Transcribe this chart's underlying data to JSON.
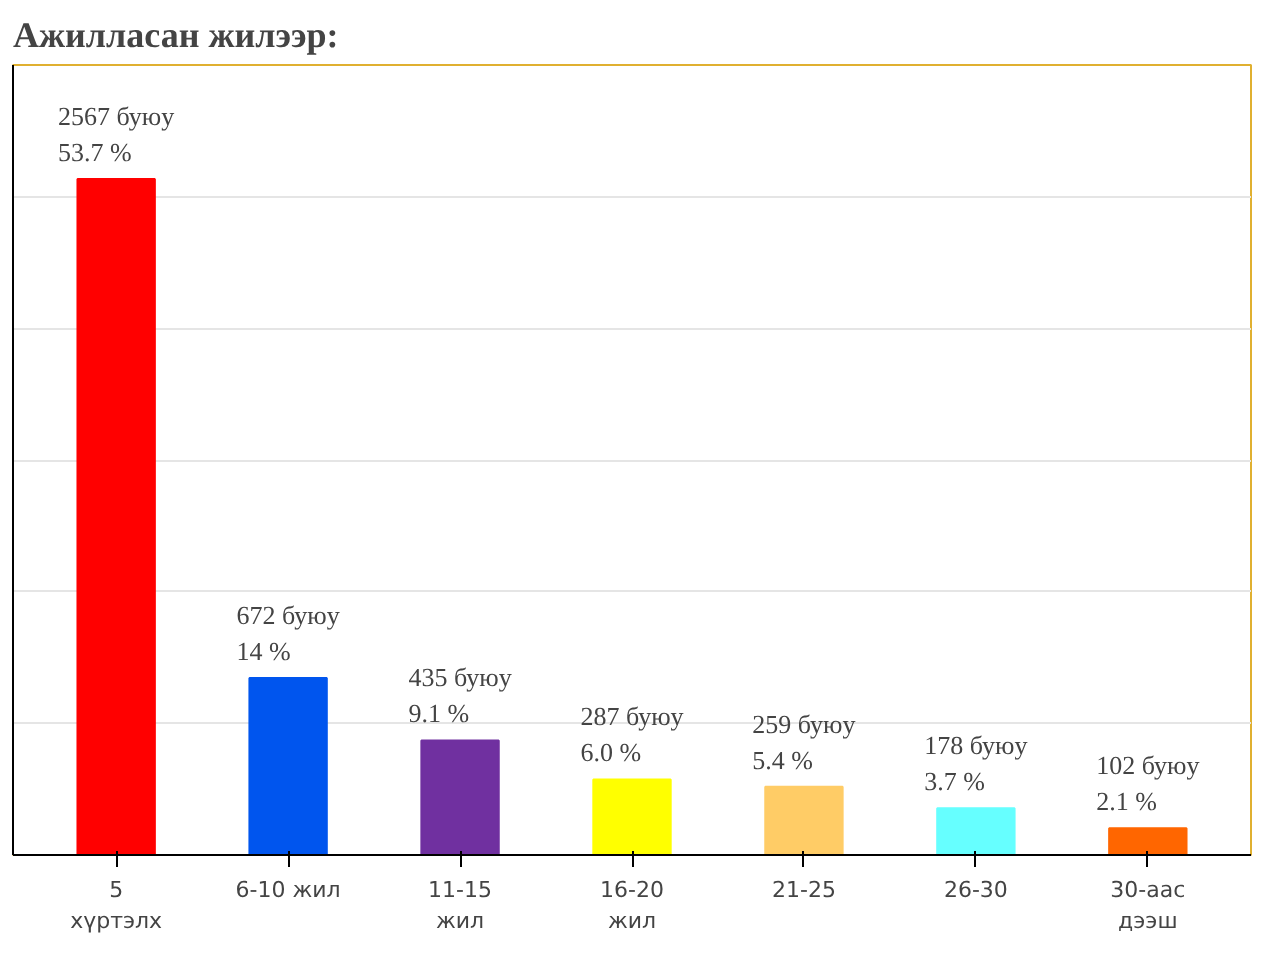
{
  "chart_data": {
    "type": "bar",
    "title": "Ажилласан жилээр:",
    "categories": [
      "5\nхүртэлх",
      "6-10 жил",
      "11-15\nжил",
      "16-20\nжил",
      "21-25",
      "26-30",
      "30-аас\nдээш"
    ],
    "values": [
      2567,
      672,
      435,
      287,
      259,
      178,
      102
    ],
    "colors": [
      "#ff0000",
      "#0055ee",
      "#7030a0",
      "#ffff00",
      "#ffcc66",
      "#66ffff",
      "#ff6600"
    ],
    "value_labels": [
      "2567 буюу\n53.7 %",
      "672 буюу\n14 %",
      "435 буюу\n9.1 %",
      "287 буюу\n6.0 %",
      "259 буюу\n5.4 %",
      "178 буюу\n3.7 %",
      "102 буюу\n2.1 %"
    ],
    "ylim": [
      0,
      3000
    ],
    "yticks": [
      {
        "value": 0,
        "label": null
      },
      {
        "value": 500,
        "label": null
      },
      {
        "value": 1000,
        "label": null
      },
      {
        "value": 1500,
        "label": null
      },
      {
        "value": 2000,
        "label": null
      },
      {
        "value": 2500,
        "label": null
      },
      {
        "value": 3000,
        "label": null
      }
    ],
    "grid": "y",
    "tick_labels": "x"
  }
}
